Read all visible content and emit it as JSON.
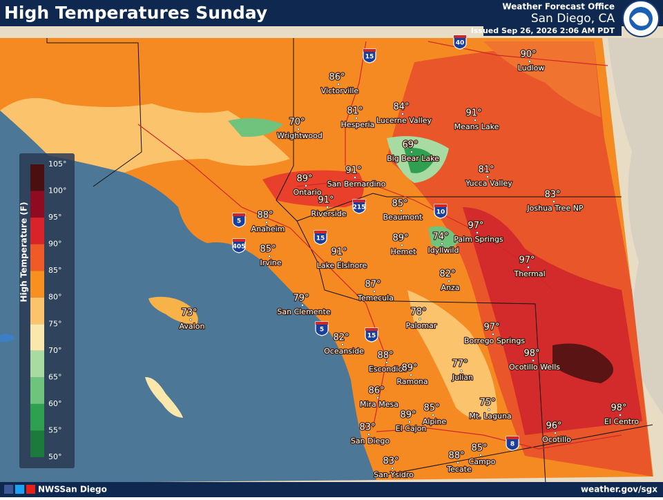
{
  "header": {
    "title": "High Temperatures Sunday",
    "office": "Weather Forecast Office",
    "location": "San Diego, CA",
    "issued": "Issued Sep 26, 2026 2:06 AM PDT"
  },
  "legend": {
    "title": "High Temperature (F)",
    "labels": [
      "105°",
      "100°",
      "95°",
      "90°",
      "85°",
      "80°",
      "75°",
      "70°",
      "65°",
      "60°",
      "55°",
      "50°"
    ],
    "colors": [
      "#4a0f10",
      "#8e0b22",
      "#d9232b",
      "#ef5a26",
      "#f7901f",
      "#fbc46c",
      "#f9e7ac",
      "#a8dba2",
      "#70c37c",
      "#2fa050",
      "#1b7a3c"
    ]
  },
  "cities": [
    {
      "name": "Victorville",
      "temp": "86°"
    },
    {
      "name": "Ludlow",
      "temp": "90°"
    },
    {
      "name": "Hesperia",
      "temp": "81°"
    },
    {
      "name": "Lucerne Valley",
      "temp": "84°"
    },
    {
      "name": "Means Lake",
      "temp": "91°"
    },
    {
      "name": "Wrightwood",
      "temp": "70°"
    },
    {
      "name": "Big Bear Lake",
      "temp": "69°"
    },
    {
      "name": "Ontario",
      "temp": "89°"
    },
    {
      "name": "San Bernardino",
      "temp": "91°"
    },
    {
      "name": "Yucca Valley",
      "temp": "81°"
    },
    {
      "name": "Joshua Tree NP",
      "temp": "83°"
    },
    {
      "name": "Riverside",
      "temp": "91°"
    },
    {
      "name": "Beaumont",
      "temp": "85°"
    },
    {
      "name": "Anaheim",
      "temp": "88°"
    },
    {
      "name": "Palm Springs",
      "temp": "97°"
    },
    {
      "name": "Idyllwild",
      "temp": "74°"
    },
    {
      "name": "Hemet",
      "temp": "89°"
    },
    {
      "name": "Irvine",
      "temp": "85°"
    },
    {
      "name": "Lake Elsinore",
      "temp": "91°"
    },
    {
      "name": "Thermal",
      "temp": "97°"
    },
    {
      "name": "Anza",
      "temp": "82°"
    },
    {
      "name": "Temecula",
      "temp": "87°"
    },
    {
      "name": "San Clemente",
      "temp": "79°"
    },
    {
      "name": "Avalon",
      "temp": "73°"
    },
    {
      "name": "Palomar",
      "temp": "78°"
    },
    {
      "name": "Borrego Springs",
      "temp": "97°"
    },
    {
      "name": "Oceanside",
      "temp": "82°"
    },
    {
      "name": "Ocotillo Wells",
      "temp": "98°"
    },
    {
      "name": "Escondido",
      "temp": "88°"
    },
    {
      "name": "Ramona",
      "temp": "89°"
    },
    {
      "name": "Julian",
      "temp": "77°"
    },
    {
      "name": "Mira Mesa",
      "temp": "86°"
    },
    {
      "name": "Mt. Laguna",
      "temp": "75°"
    },
    {
      "name": "Alpine",
      "temp": "85°"
    },
    {
      "name": "El Cajon",
      "temp": "89°"
    },
    {
      "name": "El Centro",
      "temp": "98°"
    },
    {
      "name": "San Diego",
      "temp": "83°"
    },
    {
      "name": "Ocotillo",
      "temp": "96°"
    },
    {
      "name": "Campo",
      "temp": "85°"
    },
    {
      "name": "Tecate",
      "temp": "88°"
    },
    {
      "name": "San Ysidro",
      "temp": "83°"
    }
  ],
  "highways": [
    "15",
    "40",
    "10",
    "5",
    "405",
    "215",
    "15",
    "5",
    "15",
    "8"
  ],
  "footer": {
    "social": "NWSSan Diego",
    "url": "weather.gov/sgx"
  }
}
